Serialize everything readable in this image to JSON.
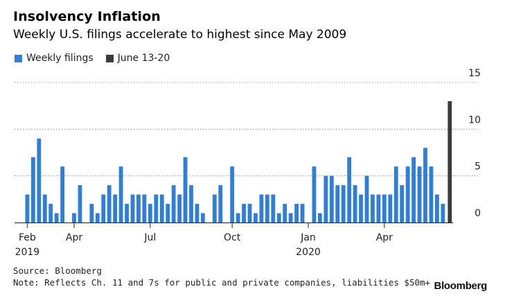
{
  "header": {
    "title": "Insolvency Inflation",
    "subtitle": "Weekly U.S. filings accelerate to highest since May 2009"
  },
  "legend": [
    {
      "label": "Weekly filings",
      "color": "#2f7ed8"
    },
    {
      "label": "June 13-20",
      "color": "#3c3c3c"
    }
  ],
  "footer": {
    "source": "Source: Bloomberg",
    "note": "Note: Reflects Ch. 11 and 7s for public and private companies, liabilities $50m+",
    "brand": "Bloomberg"
  },
  "chart_data": {
    "type": "bar",
    "title": "Insolvency Inflation",
    "subtitle": "Weekly U.S. filings accelerate to highest since May 2009",
    "ylim": [
      0,
      15
    ],
    "yticks": [
      0,
      5,
      10,
      15
    ],
    "grid": true,
    "legend_position": "top-left",
    "x_tick_labels": [
      {
        "label": "Feb",
        "sublabel": "2019",
        "index": 0
      },
      {
        "label": "Apr",
        "index": 8
      },
      {
        "label": "Jul",
        "index": 21
      },
      {
        "label": "Oct",
        "index": 35
      },
      {
        "label": "Jan",
        "sublabel": "2020",
        "index": 48
      },
      {
        "label": "Apr",
        "index": 61
      }
    ],
    "series": [
      {
        "name": "Weekly filings",
        "color": "#2f7ed8",
        "values": [
          3,
          7,
          9,
          3,
          2,
          1,
          6,
          0,
          1,
          4,
          0,
          2,
          1,
          3,
          4,
          3,
          6,
          2,
          3,
          3,
          3,
          2,
          3,
          3,
          2,
          4,
          3,
          7,
          4,
          2,
          1,
          0,
          3,
          4,
          0,
          6,
          1,
          2,
          2,
          1,
          3,
          3,
          3,
          1,
          2,
          1,
          2,
          2,
          0,
          6,
          1,
          5,
          5,
          4,
          4,
          7,
          4,
          3,
          5,
          3,
          3,
          3,
          3,
          6,
          4,
          6,
          7,
          6,
          8,
          6,
          3,
          2
        ]
      },
      {
        "name": "June 13-20",
        "color": "#3c3c3c",
        "values_at_end": [
          13
        ]
      }
    ]
  }
}
